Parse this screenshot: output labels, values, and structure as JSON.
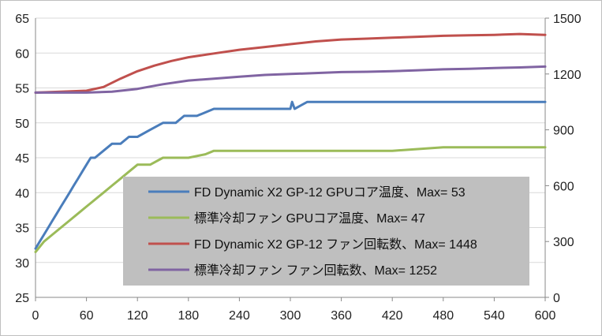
{
  "chart_data": {
    "type": "line",
    "title": "",
    "xlabel": "",
    "ylabel": "",
    "y2label": "",
    "grid": true,
    "legend_placement": "center",
    "x_range": [
      0,
      600
    ],
    "x_ticks": [
      0,
      60,
      120,
      180,
      240,
      300,
      360,
      420,
      480,
      540,
      600
    ],
    "y_left_range": [
      25,
      65
    ],
    "y_left_ticks": [
      25,
      30,
      35,
      40,
      45,
      50,
      55,
      60,
      65
    ],
    "y_right_range": [
      0,
      1500
    ],
    "y_right_ticks": [
      0,
      300,
      600,
      900,
      1200,
      1500
    ],
    "series": [
      {
        "name": "FD Dynamic X2 GP-12 GPUコア温度、Max= 53",
        "axis": "left",
        "color": "#4a7dbb",
        "x": [
          0,
          5,
          10,
          15,
          20,
          25,
          30,
          35,
          40,
          45,
          50,
          55,
          60,
          65,
          70,
          80,
          90,
          100,
          110,
          120,
          135,
          150,
          165,
          175,
          190,
          210,
          240,
          300,
          302,
          305,
          320,
          330,
          360,
          420,
          480,
          540,
          600
        ],
        "y": [
          32,
          33,
          34,
          35,
          36,
          37,
          38,
          39,
          40,
          41,
          42,
          43,
          44,
          45,
          45,
          46,
          47,
          47,
          48,
          48,
          49,
          50,
          50,
          51,
          51,
          52,
          52,
          52,
          53,
          52,
          53,
          53,
          53,
          53,
          53,
          53,
          53
        ]
      },
      {
        "name": "標準冷却ファン GPUコア温度、Max= 47",
        "axis": "left",
        "color": "#9bbb59",
        "x": [
          0,
          10,
          20,
          30,
          40,
          50,
          60,
          70,
          80,
          90,
          100,
          110,
          120,
          135,
          150,
          180,
          200,
          210,
          240,
          300,
          360,
          400,
          420,
          480,
          540,
          600
        ],
        "y": [
          31.5,
          33,
          34,
          35,
          36,
          37,
          38,
          39,
          40,
          41,
          42,
          43,
          44,
          44,
          45,
          45,
          45.5,
          46,
          46,
          46,
          46,
          46,
          46,
          46.5,
          46.5,
          46.5
        ]
      },
      {
        "name": "FD Dynamic X2 GP-12 ファン回転数、Max= 1448",
        "axis": "right",
        "color": "#c0504d",
        "x": [
          0,
          30,
          60,
          80,
          100,
          120,
          140,
          160,
          180,
          210,
          240,
          270,
          300,
          330,
          360,
          390,
          420,
          450,
          480,
          510,
          540,
          570,
          600
        ],
        "y": [
          1100,
          1105,
          1110,
          1130,
          1175,
          1215,
          1245,
          1270,
          1290,
          1310,
          1330,
          1345,
          1360,
          1375,
          1385,
          1390,
          1395,
          1400,
          1405,
          1408,
          1410,
          1415,
          1410
        ]
      },
      {
        "name": "標準冷却ファン ファン回転数、Max= 1252",
        "axis": "right",
        "color": "#8064a2",
        "x": [
          0,
          30,
          60,
          90,
          120,
          150,
          180,
          210,
          240,
          270,
          300,
          330,
          360,
          390,
          420,
          450,
          480,
          510,
          540,
          570,
          600
        ],
        "y": [
          1100,
          1100,
          1100,
          1105,
          1120,
          1145,
          1165,
          1175,
          1185,
          1195,
          1200,
          1205,
          1210,
          1212,
          1215,
          1220,
          1225,
          1228,
          1232,
          1235,
          1240
        ]
      }
    ]
  }
}
